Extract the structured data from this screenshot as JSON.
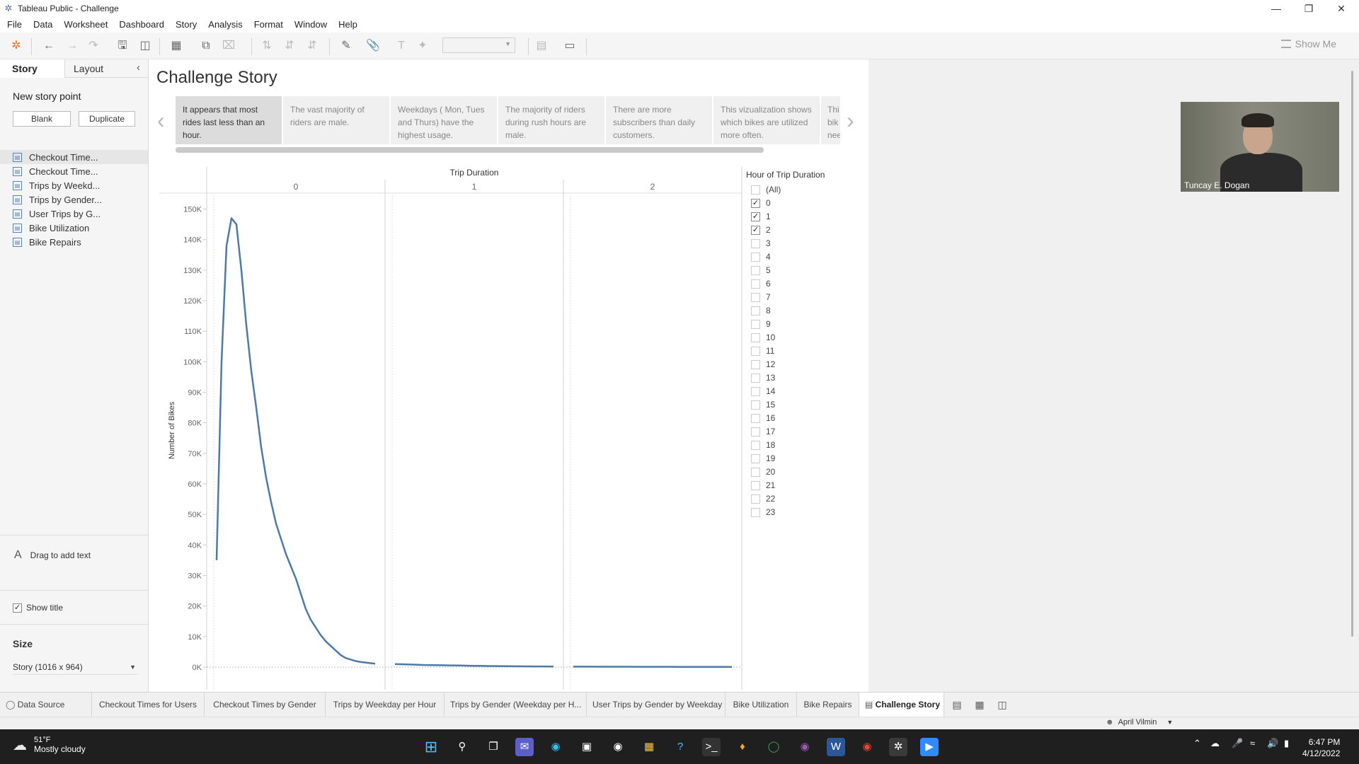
{
  "window": {
    "title": "Tableau Public - Challenge",
    "controls": [
      "minimize",
      "restore",
      "close"
    ]
  },
  "menubar": [
    "File",
    "Data",
    "Worksheet",
    "Dashboard",
    "Story",
    "Analysis",
    "Format",
    "Window",
    "Help"
  ],
  "toolbar": {
    "show_me_label": "Show Me"
  },
  "left_panel": {
    "tabs": {
      "story": "Story",
      "layout": "Layout"
    },
    "new_story_point": "New story point",
    "blank_button": "Blank",
    "duplicate_button": "Duplicate",
    "sheets": [
      "Checkout Time...",
      "Checkout Time...",
      "Trips by Weekd...",
      "Trips by Gender...",
      "User Trips by G...",
      "Bike Utilization",
      "Bike Repairs"
    ],
    "drag_to_add_text": "Drag to add text",
    "show_title_label": "Show title",
    "show_title_checked": true,
    "size_label": "Size",
    "size_value": "Story (1016 x 964)"
  },
  "story": {
    "title": "Challenge Story",
    "points": [
      {
        "text": "It appears that most rides last less than an hour.",
        "active": true
      },
      {
        "text": "The vast majority of riders are male.",
        "active": false
      },
      {
        "text": "Weekdays ( Mon, Tues and Thurs) have the highest usage.",
        "active": false
      },
      {
        "text": "The majority of riders during rush hours are male.",
        "active": false
      },
      {
        "text": "There are more subscribers than daily customers.",
        "active": false
      },
      {
        "text": "This vizualization shows which bikes are utilized more often.",
        "active": false
      },
      {
        "text": "Thi bik nee",
        "active": false
      }
    ]
  },
  "chart_data": {
    "type": "line",
    "title": "Trip Duration",
    "ylabel": "Number of Bikes",
    "ylim": [
      0,
      155000
    ],
    "y_ticks": [
      "150K",
      "140K",
      "130K",
      "120K",
      "110K",
      "100K",
      "90K",
      "80K",
      "70K",
      "60K",
      "50K",
      "40K",
      "30K",
      "20K",
      "10K",
      "0K"
    ],
    "y_tick_values": [
      150000,
      140000,
      130000,
      120000,
      110000,
      100000,
      90000,
      80000,
      70000,
      60000,
      50000,
      40000,
      30000,
      20000,
      10000,
      0
    ],
    "panels": [
      {
        "header": "0",
        "values": [
          35000,
          100000,
          138000,
          147000,
          145000,
          130000,
          112000,
          97000,
          85000,
          72000,
          62000,
          54000,
          47000,
          42000,
          37000,
          33000,
          29000,
          24000,
          19000,
          15500,
          13000,
          10500,
          8500,
          7000,
          5500,
          4000,
          3000,
          2500,
          2000,
          1700,
          1500,
          1300,
          1100
        ]
      },
      {
        "header": "1",
        "values": [
          1000,
          900,
          800,
          700,
          650,
          600,
          550,
          500,
          450,
          400,
          350,
          320,
          290,
          260,
          240,
          220,
          200,
          180
        ]
      },
      {
        "header": "2",
        "values": [
          150,
          140,
          130,
          120,
          115,
          110,
          105,
          100,
          95,
          90,
          88,
          85,
          80,
          78,
          75,
          72,
          70,
          68,
          65
        ]
      }
    ],
    "series_color": "#4e79a7"
  },
  "filter": {
    "title": "Hour of Trip Duration",
    "items": [
      {
        "label": "(All)",
        "checked": false
      },
      {
        "label": "0",
        "checked": true
      },
      {
        "label": "1",
        "checked": true
      },
      {
        "label": "2",
        "checked": true
      },
      {
        "label": "3",
        "checked": false
      },
      {
        "label": "4",
        "checked": false
      },
      {
        "label": "5",
        "checked": false
      },
      {
        "label": "6",
        "checked": false
      },
      {
        "label": "7",
        "checked": false
      },
      {
        "label": "8",
        "checked": false
      },
      {
        "label": "9",
        "checked": false
      },
      {
        "label": "10",
        "checked": false
      },
      {
        "label": "11",
        "checked": false
      },
      {
        "label": "12",
        "checked": false
      },
      {
        "label": "13",
        "checked": false
      },
      {
        "label": "14",
        "checked": false
      },
      {
        "label": "15",
        "checked": false
      },
      {
        "label": "16",
        "checked": false
      },
      {
        "label": "17",
        "checked": false
      },
      {
        "label": "18",
        "checked": false
      },
      {
        "label": "19",
        "checked": false
      },
      {
        "label": "20",
        "checked": false
      },
      {
        "label": "21",
        "checked": false
      },
      {
        "label": "22",
        "checked": false
      },
      {
        "label": "23",
        "checked": false
      }
    ]
  },
  "video_overlay": {
    "name": "Tuncay E. Dogan"
  },
  "sheet_tabs": {
    "data_source": "Data Source",
    "tabs": [
      "Checkout Times for Users",
      "Checkout Times by Gender",
      "Trips by Weekday per Hour",
      "Trips by Gender (Weekday per H...",
      "User Trips by Gender by Weekday",
      "Bike Utilization",
      "Bike Repairs",
      "Challenge Story"
    ],
    "active": "Challenge Story"
  },
  "status": {
    "user": "April Vilmin"
  },
  "taskbar": {
    "weather_temp": "51°F",
    "weather_desc": "Mostly cloudy",
    "time": "6:47 PM",
    "date": "4/12/2022"
  }
}
